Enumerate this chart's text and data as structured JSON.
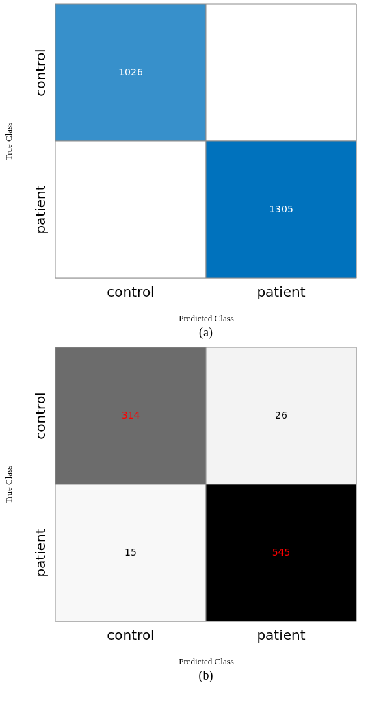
{
  "chart_data": [
    {
      "type": "heatmap",
      "data_labels": true,
      "color": "#0072bd",
      "categories": [
        "control",
        "patient"
      ],
      "y_categories": [
        "control",
        "patient"
      ],
      "xlabel": "Predicted Class",
      "ylabel": "True Class",
      "annotations": [
        "(a)"
      ],
      "cells": [
        [
          1026,
          null
        ],
        [
          null,
          1305
        ]
      ]
    },
    {
      "type": "heatmap",
      "data_labels": true,
      "color": "#000000",
      "categories": [
        "control",
        "patient"
      ],
      "y_categories": [
        "control",
        "patient"
      ],
      "xlabel": "Predicted Class",
      "ylabel": "True Class",
      "annotations": [
        "(b)"
      ],
      "cells": [
        [
          314,
          26
        ],
        [
          15,
          545
        ]
      ]
    }
  ]
}
